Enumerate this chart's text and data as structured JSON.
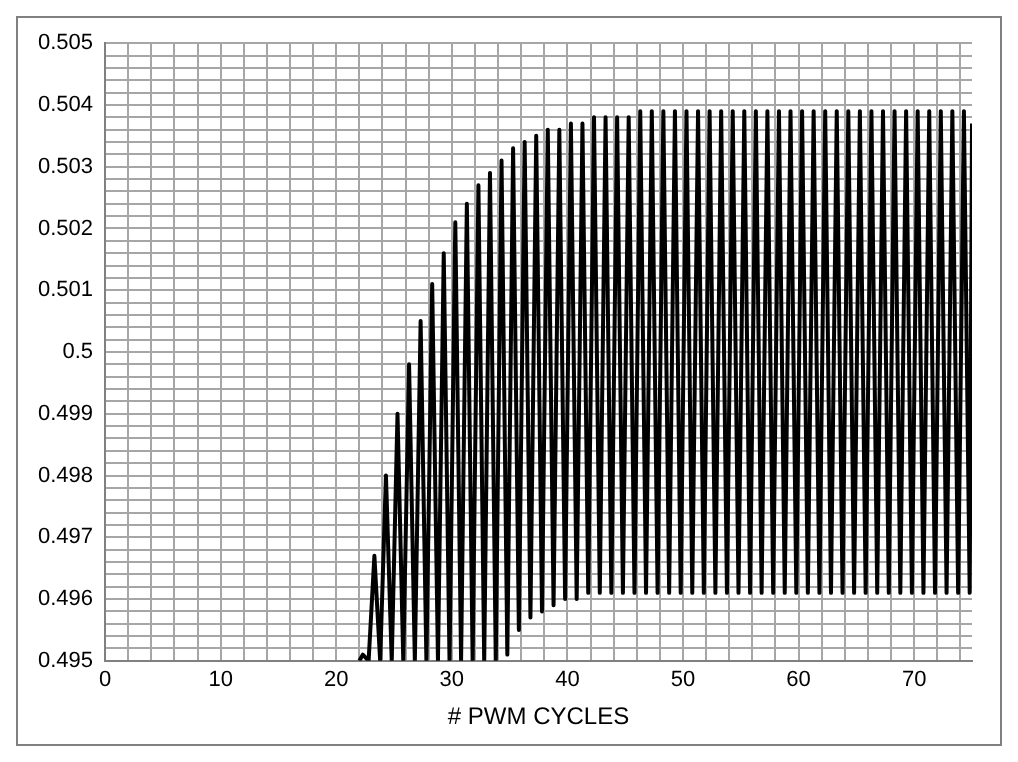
{
  "chart_data": {
    "type": "line",
    "xlabel": "# PWM CYCLES",
    "x": [
      22,
      22.3,
      22.8,
      23.3,
      23.8,
      24.3,
      24.8,
      25.3,
      25.8,
      26.3,
      26.8,
      27.3,
      27.8,
      28.3,
      28.8,
      29.3,
      29.8,
      30.3,
      30.8,
      31.3,
      31.8,
      32.3,
      32.8,
      33.3,
      33.8,
      34.3,
      34.8,
      35.3,
      35.8,
      36.3,
      36.8,
      37.3,
      37.8,
      38.3,
      38.8,
      39.3,
      39.8,
      40.3,
      40.8,
      41.3,
      41.8,
      42.3,
      42.8,
      43.3,
      43.8,
      44.3,
      44.8,
      45.3,
      45.8,
      46.3,
      46.8,
      47.3,
      47.8,
      48.3,
      48.8,
      49.3,
      49.8,
      50.3,
      50.8,
      51.3,
      51.8,
      52.3,
      52.8,
      53.3,
      53.8,
      54.3,
      54.8,
      55.3,
      55.8,
      56.3,
      56.8,
      57.3,
      57.8,
      58.3,
      58.8,
      59.3,
      59.8,
      60.3,
      60.8,
      61.3,
      61.8,
      62.3,
      62.8,
      63.3,
      63.8,
      64.3,
      64.8,
      65.3,
      65.8,
      66.3,
      66.8,
      67.3,
      67.8,
      68.3,
      68.8,
      69.3,
      69.8,
      70.3,
      70.8,
      71.3,
      71.8,
      72.3,
      72.8,
      73.3,
      73.8,
      74.3,
      74.8,
      75
    ],
    "series": [
      {
        "color": "#000000",
        "values": [
          0.495,
          0.4951,
          0.495,
          0.4967,
          0.495,
          0.498,
          0.495,
          0.499,
          0.495,
          0.4998,
          0.495,
          0.5005,
          0.495,
          0.5011,
          0.495,
          0.5016,
          0.495,
          0.5021,
          0.495,
          0.5024,
          0.495,
          0.5027,
          0.495,
          0.5029,
          0.495,
          0.5031,
          0.4951,
          0.5033,
          0.4955,
          0.5034,
          0.4957,
          0.5035,
          0.4958,
          0.5036,
          0.4959,
          0.5036,
          0.496,
          0.5037,
          0.496,
          0.5037,
          0.4961,
          0.5038,
          0.4961,
          0.5038,
          0.4961,
          0.5038,
          0.4961,
          0.5038,
          0.4961,
          0.5039,
          0.4961,
          0.5039,
          0.4961,
          0.5039,
          0.4961,
          0.5039,
          0.4961,
          0.5039,
          0.4961,
          0.5039,
          0.4961,
          0.5039,
          0.4961,
          0.5039,
          0.4961,
          0.5039,
          0.4961,
          0.5039,
          0.4961,
          0.5039,
          0.4961,
          0.5039,
          0.4961,
          0.5039,
          0.4961,
          0.5039,
          0.4961,
          0.5039,
          0.4961,
          0.5039,
          0.4961,
          0.5039,
          0.4961,
          0.5039,
          0.4961,
          0.5039,
          0.4961,
          0.5039,
          0.4961,
          0.5039,
          0.4961,
          0.5039,
          0.4961,
          0.5039,
          0.4961,
          0.5039,
          0.4961,
          0.5039,
          0.4961,
          0.5039,
          0.4961,
          0.5039,
          0.4961,
          0.5039,
          0.4961,
          0.5039,
          0.4961,
          0.5037
        ]
      }
    ],
    "xlim": [
      0,
      75
    ],
    "xticks": [
      0,
      {
        "value": 2,
        "label": null
      },
      {
        "value": 4,
        "label": null
      },
      {
        "value": 6,
        "label": null
      },
      {
        "value": 8,
        "label": null
      },
      10,
      {
        "value": 12,
        "label": null
      },
      {
        "value": 14,
        "label": null
      },
      {
        "value": 16,
        "label": null
      },
      {
        "value": 18,
        "label": null
      },
      20,
      {
        "value": 22,
        "label": null
      },
      {
        "value": 24,
        "label": null
      },
      {
        "value": 26,
        "label": null
      },
      {
        "value": 28,
        "label": null
      },
      30,
      {
        "value": 32,
        "label": null
      },
      {
        "value": 34,
        "label": null
      },
      {
        "value": 36,
        "label": null
      },
      {
        "value": 38,
        "label": null
      },
      40,
      {
        "value": 42,
        "label": null
      },
      {
        "value": 44,
        "label": null
      },
      {
        "value": 46,
        "label": null
      },
      {
        "value": 48,
        "label": null
      },
      50,
      {
        "value": 52,
        "label": null
      },
      {
        "value": 54,
        "label": null
      },
      {
        "value": 56,
        "label": null
      },
      {
        "value": 58,
        "label": null
      },
      60,
      {
        "value": 62,
        "label": null
      },
      {
        "value": 64,
        "label": null
      },
      {
        "value": 66,
        "label": null
      },
      {
        "value": 68,
        "label": null
      },
      70,
      {
        "value": 72,
        "label": null
      },
      {
        "value": 74,
        "label": null
      }
    ],
    "ylim": [
      0.495,
      0.505
    ],
    "yticks": [
      0.495,
      {
        "value": 0.4952,
        "label": null
      },
      {
        "value": 0.4954,
        "label": null
      },
      {
        "value": 0.4956,
        "label": null
      },
      {
        "value": 0.4958,
        "label": null
      },
      0.496,
      {
        "value": 0.4962,
        "label": null
      },
      {
        "value": 0.4964,
        "label": null
      },
      {
        "value": 0.4966,
        "label": null
      },
      {
        "value": 0.4968,
        "label": null
      },
      0.497,
      {
        "value": 0.4972,
        "label": null
      },
      {
        "value": 0.4974,
        "label": null
      },
      {
        "value": 0.4976,
        "label": null
      },
      {
        "value": 0.4978,
        "label": null
      },
      0.498,
      {
        "value": 0.4982,
        "label": null
      },
      {
        "value": 0.4984,
        "label": null
      },
      {
        "value": 0.4986,
        "label": null
      },
      {
        "value": 0.4988,
        "label": null
      },
      0.499,
      {
        "value": 0.4992,
        "label": null
      },
      {
        "value": 0.4994,
        "label": null
      },
      {
        "value": 0.4996,
        "label": null
      },
      {
        "value": 0.4998,
        "label": null
      },
      {
        "value": 0.5,
        "label": "0.5"
      },
      {
        "value": 0.5002,
        "label": null
      },
      {
        "value": 0.5004,
        "label": null
      },
      {
        "value": 0.5006,
        "label": null
      },
      {
        "value": 0.5008,
        "label": null
      },
      0.501,
      {
        "value": 0.5012,
        "label": null
      },
      {
        "value": 0.5014,
        "label": null
      },
      {
        "value": 0.5016,
        "label": null
      },
      {
        "value": 0.5018,
        "label": null
      },
      0.502,
      {
        "value": 0.5022,
        "label": null
      },
      {
        "value": 0.5024,
        "label": null
      },
      {
        "value": 0.5026,
        "label": null
      },
      {
        "value": 0.5028,
        "label": null
      },
      0.503,
      {
        "value": 0.5032,
        "label": null
      },
      {
        "value": 0.5034,
        "label": null
      },
      {
        "value": 0.5036,
        "label": null
      },
      {
        "value": 0.5038,
        "label": null
      },
      0.504,
      {
        "value": 0.5042,
        "label": null
      },
      {
        "value": 0.5044,
        "label": null
      },
      {
        "value": 0.5046,
        "label": null
      },
      {
        "value": 0.5048,
        "label": null
      },
      0.505
    ],
    "grid": true,
    "legend": false,
    "marker": "none",
    "line_style": "solid"
  }
}
